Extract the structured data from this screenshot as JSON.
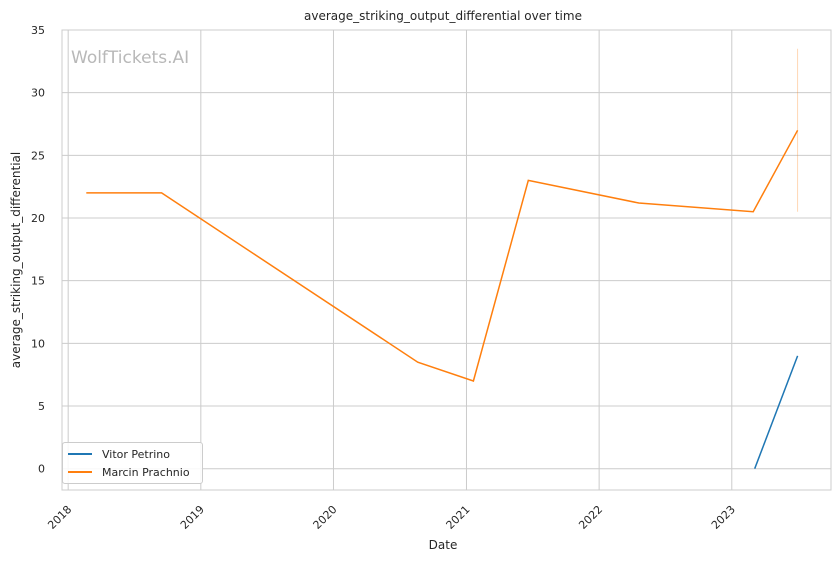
{
  "chart_data": {
    "type": "line",
    "title": "average_striking_output_differential over time",
    "xlabel": "Date",
    "ylabel": "average_striking_output_differential",
    "watermark": "WolfTickets.AI",
    "x_tick_labels": [
      "2018",
      "2019",
      "2020",
      "2021",
      "2022",
      "2023"
    ],
    "x_ticks": [
      "2018-01-01",
      "2019-01-01",
      "2020-01-01",
      "2021-01-01",
      "2022-01-01",
      "2023-01-01"
    ],
    "xlim": [
      "2017-12-15",
      "2023-10-01"
    ],
    "ylim": [
      -1.7,
      35
    ],
    "y_ticks": [
      0,
      5,
      10,
      15,
      20,
      25,
      30,
      35
    ],
    "grid": true,
    "legend_position": "lower-left",
    "series": [
      {
        "name": "Vitor Petrino",
        "color": "#1f77b4",
        "points": [
          {
            "x": "2023-03-05",
            "y": 0
          },
          {
            "x": "2023-07-01",
            "y": 9
          }
        ]
      },
      {
        "name": "Marcin Prachnio",
        "color": "#ff7f0e",
        "points": [
          {
            "x": "2018-02-20",
            "y": 22
          },
          {
            "x": "2018-09-15",
            "y": 22
          },
          {
            "x": "2020-08-20",
            "y": 8.5
          },
          {
            "x": "2021-01-20",
            "y": 7
          },
          {
            "x": "2021-06-20",
            "y": 23
          },
          {
            "x": "2022-04-20",
            "y": 21.2
          },
          {
            "x": "2023-03-01",
            "y": 20.5
          },
          {
            "x": "2023-07-01",
            "y": 27
          }
        ],
        "error_band": {
          "x": "2023-07-01",
          "low": 20.5,
          "high": 33.5
        }
      }
    ]
  }
}
